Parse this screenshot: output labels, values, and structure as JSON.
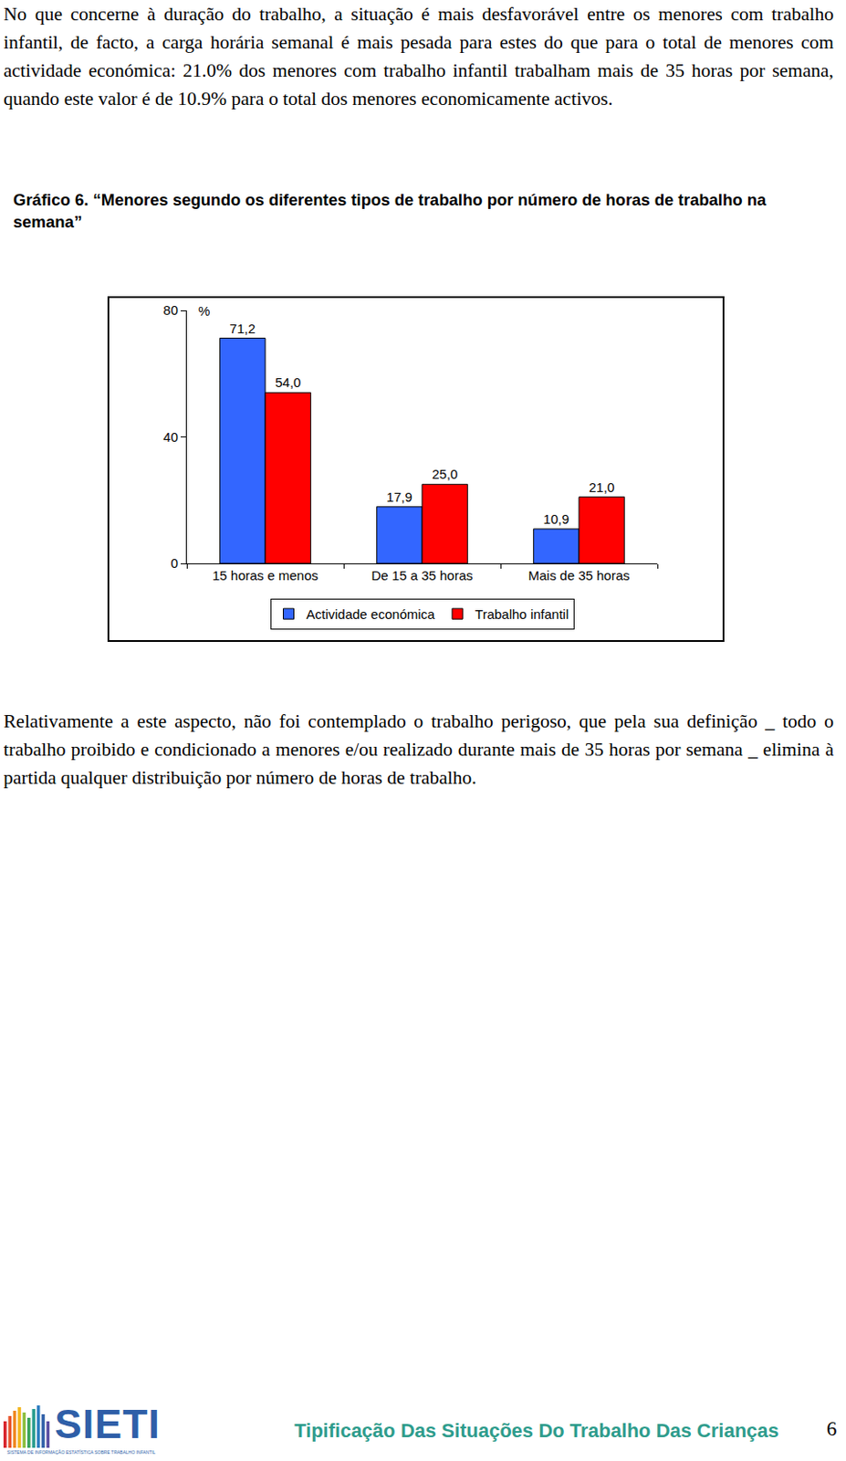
{
  "paragraph_1": "No que concerne à duração do trabalho, a situação é mais desfavorável entre os menores com trabalho infantil, de facto, a carga horária semanal é mais pesada para estes do que para o total de menores com actividade económica: 21.0% dos menores com trabalho infantil trabalham mais de 35 horas por semana, quando este valor é de 10.9% para o total dos menores economicamente activos.",
  "figure_title": "Gráfico 6. “Menores segundo os diferentes tipos de trabalho por número de horas de trabalho na semana”",
  "chart_data": {
    "type": "bar",
    "ylabel": "%",
    "categories": [
      "15 horas e menos",
      "De 15 a 35 horas",
      "Mais de 35 horas"
    ],
    "series": [
      {
        "name": "Actividade económica",
        "color": "#3366ff",
        "values": [
          71.2,
          17.9,
          10.9
        ],
        "value_labels": [
          "71,2",
          "17,9",
          "10,9"
        ]
      },
      {
        "name": "Trabalho infantil",
        "color": "#ff0000",
        "values": [
          54.0,
          25.0,
          21.0
        ],
        "value_labels": [
          "54,0",
          "25,0",
          "21,0"
        ]
      }
    ],
    "ylim": [
      0,
      80
    ],
    "yticks": [
      0,
      40,
      80
    ],
    "grid": false,
    "data_labels": true,
    "legend": "bottom"
  },
  "paragraph_2": "Relativamente a este aspecto, não foi contemplado o trabalho perigoso, que pela sua definição _ todo o trabalho proibido e condicionado a menores e/ou realizado durante mais de 35 horas por semana _ elimina à partida qualquer distribuição por número de horas de trabalho.",
  "footer": {
    "logo": "SIETI",
    "logo_subtitle": "SISTEMA DE INFORMAÇÃO ESTATÍSTICA SOBRE TRABALHO INFANTIL",
    "title": "Tipificação Das Situações Do Trabalho Das Crianças",
    "page": 6
  }
}
